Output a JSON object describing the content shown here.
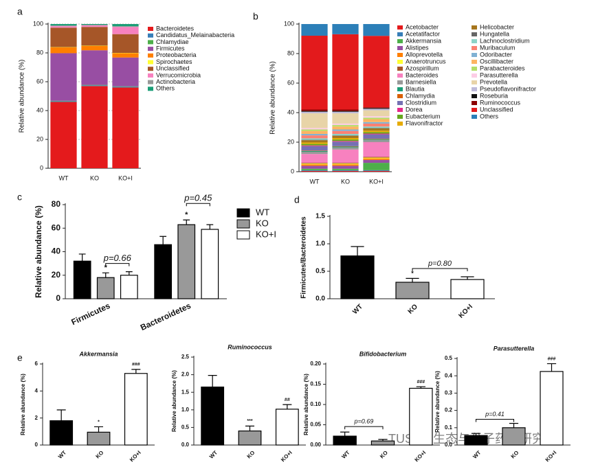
{
  "watermark": "TUST微生态与分子药理研究室",
  "chart_data": [
    {
      "type": "stacked_bar",
      "panel": "a",
      "y_label": "Relative abundance (%)",
      "categories": [
        "WT",
        "KO",
        "KO+I"
      ],
      "ylim": [
        0,
        100
      ],
      "yticks": [
        0,
        20,
        40,
        60,
        80,
        100
      ],
      "grid": true,
      "series": [
        {
          "name": "Bacteroidetes",
          "color": "#e41a1c",
          "values": [
            46,
            57,
            56
          ]
        },
        {
          "name": "Candidatus_Melainabacteria",
          "color": "#377eb8",
          "values": [
            0.5,
            0.5,
            0.5
          ]
        },
        {
          "name": "Chlamydiae",
          "color": "#4daf4a",
          "values": [
            0.3,
            0.3,
            0.3
          ]
        },
        {
          "name": "Firmicutes",
          "color": "#984ea3",
          "values": [
            33,
            24,
            20
          ]
        },
        {
          "name": "Proteobacteria",
          "color": "#ff7f00",
          "values": [
            4,
            3,
            3
          ]
        },
        {
          "name": "Spirochaetes",
          "color": "#ffff33",
          "values": [
            0.2,
            0.2,
            0.2
          ]
        },
        {
          "name": "Unclassified",
          "color": "#a65628",
          "values": [
            13.5,
            13,
            13
          ]
        },
        {
          "name": "Verrucomicrobia",
          "color": "#f781bf",
          "values": [
            1,
            1,
            5
          ]
        },
        {
          "name": "Actinobacteria",
          "color": "#999999",
          "values": [
            0.5,
            0.5,
            0.5
          ]
        },
        {
          "name": "Others",
          "color": "#1b9e77",
          "values": [
            1,
            0.5,
            1.5
          ]
        }
      ]
    },
    {
      "type": "stacked_bar",
      "panel": "b",
      "y_label": "Relative abundance (%)",
      "categories": [
        "WT",
        "KO",
        "KO+I"
      ],
      "ylim": [
        0,
        100
      ],
      "yticks": [
        0,
        20,
        40,
        60,
        80,
        100
      ],
      "grid": false,
      "series": [
        {
          "name": "Acetobacter",
          "color": "#e41a1c",
          "values": [
            0.5,
            0.5,
            0.5
          ]
        },
        {
          "name": "Acetatifactor",
          "color": "#377eb8",
          "values": [
            0.5,
            0.5,
            0.5
          ]
        },
        {
          "name": "Akkermansia",
          "color": "#4daf4a",
          "values": [
            1,
            1,
            5
          ]
        },
        {
          "name": "Alistipes",
          "color": "#984ea3",
          "values": [
            2,
            2,
            2
          ]
        },
        {
          "name": "Alloprevotella",
          "color": "#ff7f00",
          "values": [
            1,
            1,
            1
          ]
        },
        {
          "name": "Anaerotruncus",
          "color": "#ffff33",
          "values": [
            0.5,
            0.5,
            0.5
          ]
        },
        {
          "name": "Azospirillum",
          "color": "#a65628",
          "values": [
            0.5,
            0.5,
            0.5
          ]
        },
        {
          "name": "Bacteroides",
          "color": "#f781bf",
          "values": [
            6,
            9,
            10
          ]
        },
        {
          "name": "Barnesiella",
          "color": "#999999",
          "values": [
            1.5,
            1.5,
            1.5
          ]
        },
        {
          "name": "Blautia",
          "color": "#1b9e77",
          "values": [
            0.5,
            0.5,
            0.5
          ]
        },
        {
          "name": "Chlamydia",
          "color": "#d95f02",
          "values": [
            0.3,
            0.3,
            0.3
          ]
        },
        {
          "name": "Clostridium",
          "color": "#7570b3",
          "values": [
            3,
            3,
            3
          ]
        },
        {
          "name": "Dorea",
          "color": "#e7298a",
          "values": [
            0.5,
            0.5,
            0.5
          ]
        },
        {
          "name": "Eubacterium",
          "color": "#66a61e",
          "values": [
            1,
            1,
            1
          ]
        },
        {
          "name": "Flavonifractor",
          "color": "#e6ab02",
          "values": [
            1,
            1,
            1
          ]
        },
        {
          "name": "Helicobacter",
          "color": "#a6761d",
          "values": [
            1.5,
            1.5,
            1.5
          ]
        },
        {
          "name": "Hungatella",
          "color": "#666666",
          "values": [
            0.3,
            0.3,
            0.3
          ]
        },
        {
          "name": "Lachnoclostridium",
          "color": "#8dd3c7",
          "values": [
            1,
            1,
            1
          ]
        },
        {
          "name": "Muribaculum",
          "color": "#fb8072",
          "values": [
            2,
            2,
            2
          ]
        },
        {
          "name": "Odoribacter",
          "color": "#80b1d3",
          "values": [
            1,
            1,
            1
          ]
        },
        {
          "name": "Oscillibacter",
          "color": "#fdb462",
          "values": [
            2,
            2,
            2
          ]
        },
        {
          "name": "Parabacteroides",
          "color": "#b3de69",
          "values": [
            1,
            1,
            1
          ]
        },
        {
          "name": "Parasutterella",
          "color": "#fccde5",
          "values": [
            1,
            1,
            1
          ]
        },
        {
          "name": "Prevotella",
          "color": "#e8d4a8",
          "values": [
            10,
            7,
            4
          ]
        },
        {
          "name": "Pseudoflavonifractor",
          "color": "#bebada",
          "values": [
            1,
            1,
            1
          ]
        },
        {
          "name": "Roseburia",
          "color": "#111111",
          "values": [
            0.5,
            0.5,
            0.5
          ]
        },
        {
          "name": "Ruminococcus",
          "color": "#8b0000",
          "values": [
            1,
            1,
            0.5
          ]
        },
        {
          "name": "Unclassified",
          "color": "#e31a1c",
          "values": [
            50,
            51,
            48.4
          ]
        },
        {
          "name": "Others",
          "color": "#2c7fb8",
          "values": [
            7.9,
            6.9,
            8
          ]
        }
      ]
    },
    {
      "type": "grouped_bar",
      "panel": "c",
      "y_label": "Relative abundance (%)",
      "categories": [
        "Firmicutes",
        "Bacteroidetes"
      ],
      "ylim": [
        0,
        80
      ],
      "yticks": [
        0,
        20,
        40,
        60,
        80
      ],
      "series": [
        {
          "name": "WT",
          "color": "#000000",
          "values": [
            32,
            46
          ],
          "errors": [
            6,
            7
          ]
        },
        {
          "name": "KO",
          "color": "#999999",
          "values": [
            18,
            63
          ],
          "errors": [
            4,
            4
          ]
        },
        {
          "name": "KO+I",
          "color": "#ffffff",
          "values": [
            20,
            59
          ],
          "errors": [
            3,
            4
          ]
        }
      ],
      "annotations": [
        "*",
        "p=0.66",
        "*",
        "p=0.45"
      ]
    },
    {
      "type": "bar",
      "panel": "d",
      "y_label": "Firmicutes/Bacteroidetes",
      "categories": [
        "WT",
        "KO",
        "KO+I"
      ],
      "values": [
        0.78,
        0.3,
        0.35
      ],
      "errors": [
        0.17,
        0.07,
        0.05
      ],
      "colors": [
        "#000000",
        "#999999",
        "#ffffff"
      ],
      "ylim": [
        0,
        1.5
      ],
      "yticks": [
        {
          "value": 0,
          "label": "0.0"
        },
        0.5,
        {
          "value": 1,
          "label": "1.0"
        },
        1.5
      ],
      "annotations": [
        "*",
        "p=0.80"
      ]
    },
    {
      "type": "bar",
      "panel": "e",
      "title": "Akkermansia",
      "y_label": "Relative abundance (%)",
      "categories": [
        "WT",
        "KO",
        "KO+I"
      ],
      "values": [
        1.8,
        0.95,
        5.3
      ],
      "errors": [
        0.8,
        0.4,
        0.3
      ],
      "colors": [
        "#000000",
        "#999999",
        "#ffffff"
      ],
      "ylim": [
        0,
        6
      ],
      "yticks": [
        0,
        2,
        4,
        6
      ],
      "annotations": [
        "*",
        "###"
      ]
    },
    {
      "type": "bar",
      "title": "Ruminococcus",
      "y_label": "Relative abundance (%)",
      "categories": [
        "WT",
        "KO",
        "KO+I"
      ],
      "values": [
        1.65,
        0.4,
        1.02
      ],
      "errors": [
        0.33,
        0.14,
        0.13
      ],
      "colors": [
        "#000000",
        "#999999",
        "#ffffff"
      ],
      "ylim": [
        0,
        2.5
      ],
      "yticks": [
        {
          "value": 0,
          "label": "0.0"
        },
        0.5,
        {
          "value": 1,
          "label": "1.0"
        },
        1.5,
        {
          "value": 2,
          "label": "2.0"
        },
        2.5
      ],
      "annotations": [
        "***",
        "##"
      ]
    },
    {
      "type": "bar",
      "title": "Bifidobacterium",
      "y_label": "Relative abundance (%)",
      "categories": [
        "WT",
        "KO",
        "KO+I"
      ],
      "values": [
        0.022,
        0.01,
        0.14
      ],
      "errors": [
        0.01,
        0.004,
        0.004
      ],
      "colors": [
        "#000000",
        "#999999",
        "#ffffff"
      ],
      "ylim": [
        0,
        0.2
      ],
      "yticks": [
        {
          "value": 0,
          "label": "0.00"
        },
        0.05,
        {
          "value": 0.1,
          "label": "0.10"
        },
        0.15,
        {
          "value": 0.2,
          "label": "0.20"
        }
      ],
      "annotations": [
        "p=0.69",
        "###"
      ]
    },
    {
      "type": "bar",
      "title": "Parasutterella",
      "y_label": "Relative abundance (%)",
      "categories": [
        "WT",
        "KO",
        "KO+I"
      ],
      "values": [
        0.055,
        0.1,
        0.425
      ],
      "errors": [
        0.012,
        0.025,
        0.045
      ],
      "colors": [
        "#000000",
        "#999999",
        "#ffffff"
      ],
      "ylim": [
        0,
        0.5
      ],
      "yticks": [
        {
          "value": 0,
          "label": "0.0"
        },
        0.1,
        0.2,
        0.3,
        0.4,
        0.5
      ],
      "annotations": [
        "p=0.41",
        "###"
      ]
    }
  ]
}
